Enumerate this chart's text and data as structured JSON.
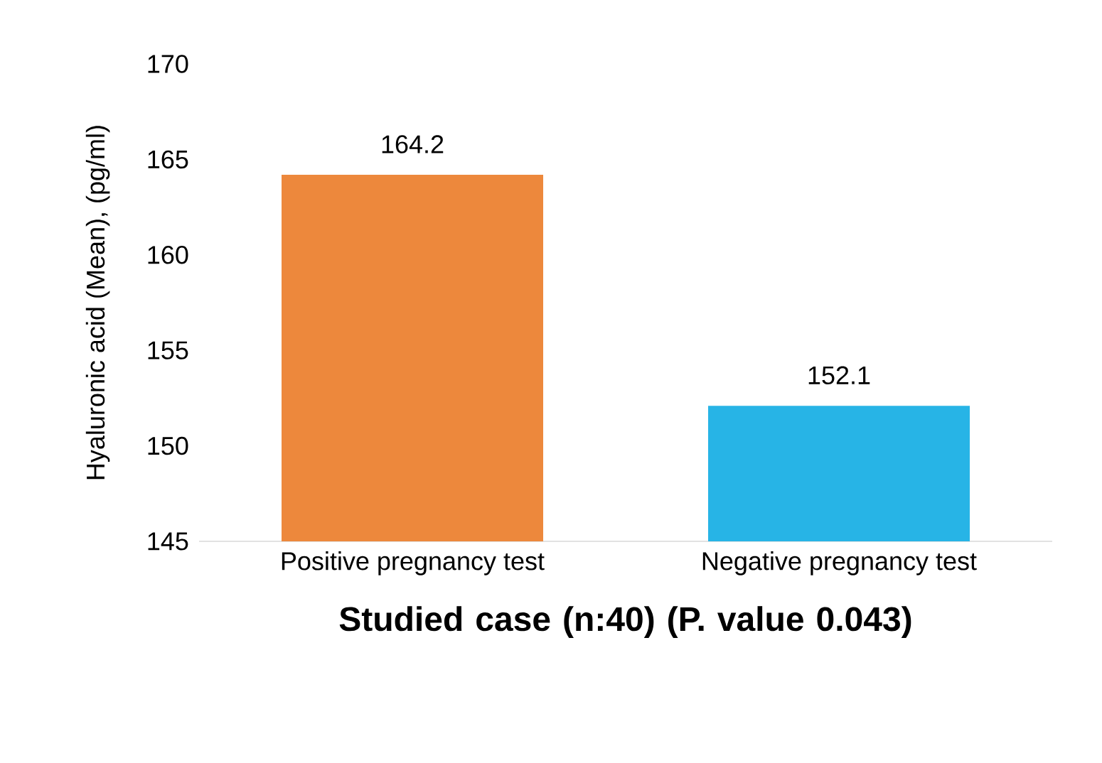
{
  "chart_data": {
    "type": "bar",
    "xlabel": "Studied case (n:40) (P. value 0.043)",
    "ylabel": "Hyaluronic acid (Mean), (pg/ml)",
    "categories": [
      "Positive pregnancy test",
      "Negative pregnancy test"
    ],
    "values": [
      164.2,
      152.1
    ],
    "colors": [
      "#ed883c",
      "#27b4e6"
    ],
    "ylim": [
      145,
      170
    ],
    "yticks": [
      145,
      150,
      155,
      160,
      165,
      170
    ],
    "data_labels": true
  }
}
